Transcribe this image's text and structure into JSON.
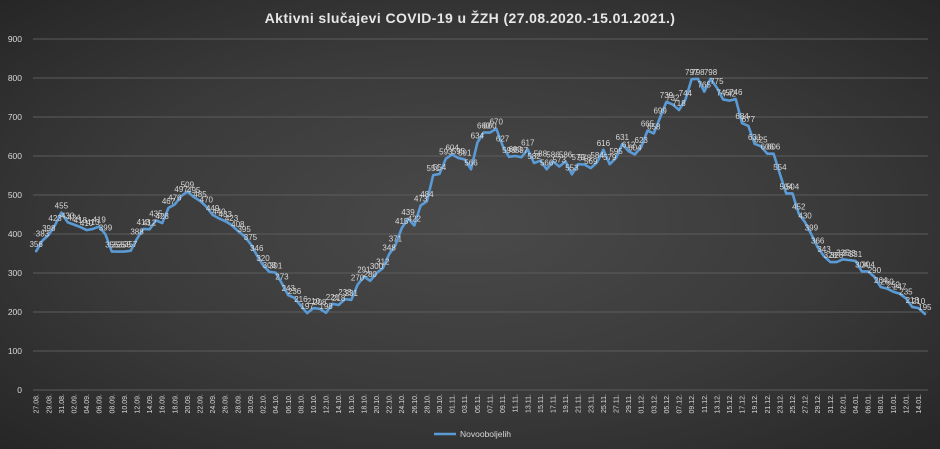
{
  "chart_data": {
    "type": "line",
    "title": "Aktivni slučajevi  COVID-19  u ŽZH (27.08.2020.-15.01.2021.)",
    "xlabel": "",
    "ylabel": "",
    "ylim": [
      0,
      900
    ],
    "yticks": [
      0,
      100,
      200,
      300,
      400,
      500,
      600,
      700,
      800,
      900
    ],
    "grid": true,
    "legend_position": "bottom",
    "line_color": "#5b9bd5",
    "x_tick_labels": [
      "27.08.",
      "29.08.",
      "31.08.",
      "02.09.",
      "04.09.",
      "06.09.",
      "08.09.",
      "10.09.",
      "12.09.",
      "14.09.",
      "16.09.",
      "18.09.",
      "20.09.",
      "22.09.",
      "24.09.",
      "26.09.",
      "28.09.",
      "30.09.",
      "02.10.",
      "04.10.",
      "06.10.",
      "08.10.",
      "10.10.",
      "12.10.",
      "14.10.",
      "16.10.",
      "18.10.",
      "20.10.",
      "22.10.",
      "24.10.",
      "26.10.",
      "28.10.",
      "30.10.",
      "01.11.",
      "03.11.",
      "05.11.",
      "07.11.",
      "09.11.",
      "11.11.",
      "13.11.",
      "15.11.",
      "17.11.",
      "19.11.",
      "21.11.",
      "23.11.",
      "25.11.",
      "27.11.",
      "29.11.",
      "01.12.",
      "03.12.",
      "05.12.",
      "07.12.",
      "09.12.",
      "11.12.",
      "13.12.",
      "15.12.",
      "17.12.",
      "19.12.",
      "21.12.",
      "23.12.",
      "25.12.",
      "27.12.",
      "29.12.",
      "31.12.",
      "02.01.",
      "04.01.",
      "06.01.",
      "08.01.",
      "10.01.",
      "12.01.",
      "14.01."
    ],
    "series": [
      {
        "name": "Novooboljelih",
        "x": [
          "27.08.",
          "28.08.",
          "29.08.",
          "30.08.",
          "31.08.",
          "01.09.",
          "02.09.",
          "03.09.",
          "04.09.",
          "05.09.",
          "06.09.",
          "07.09.",
          "08.09.",
          "09.09.",
          "10.09.",
          "11.09.",
          "12.09.",
          "13.09.",
          "14.09.",
          "15.09.",
          "16.09.",
          "17.09.",
          "18.09.",
          "19.09.",
          "20.09.",
          "21.09.",
          "22.09.",
          "23.09.",
          "24.09.",
          "25.09.",
          "26.09.",
          "27.09.",
          "28.09.",
          "29.09.",
          "30.09.",
          "01.10.",
          "02.10.",
          "03.10.",
          "04.10.",
          "05.10.",
          "06.10.",
          "07.10.",
          "08.10.",
          "09.10.",
          "10.10.",
          "11.10.",
          "12.10.",
          "13.10.",
          "14.10.",
          "15.10.",
          "16.10.",
          "17.10.",
          "18.10.",
          "19.10.",
          "20.10.",
          "21.10.",
          "22.10.",
          "23.10.",
          "24.10.",
          "25.10.",
          "26.10.",
          "27.10.",
          "28.10.",
          "29.10.",
          "30.10.",
          "31.10.",
          "01.11.",
          "02.11.",
          "03.11.",
          "04.11.",
          "05.11.",
          "06.11.",
          "07.11.",
          "08.11.",
          "09.11.",
          "10.11.",
          "11.11.",
          "12.11.",
          "13.11.",
          "14.11.",
          "15.11.",
          "16.11.",
          "17.11.",
          "18.11.",
          "19.11.",
          "20.11.",
          "21.11.",
          "22.11.",
          "23.11.",
          "24.11.",
          "25.11.",
          "26.11.",
          "27.11.",
          "28.11.",
          "29.11.",
          "30.11.",
          "01.12.",
          "02.12.",
          "03.12.",
          "04.12.",
          "05.12.",
          "06.12.",
          "07.12.",
          "08.12.",
          "09.12.",
          "10.12.",
          "11.12.",
          "12.12.",
          "13.12.",
          "14.12.",
          "15.12.",
          "16.12.",
          "17.12.",
          "18.12.",
          "19.12.",
          "20.12.",
          "21.12.",
          "22.12.",
          "23.12.",
          "24.12.",
          "25.12.",
          "26.12.",
          "27.12.",
          "28.12.",
          "29.12.",
          "30.12.",
          "31.12.",
          "01.01.",
          "02.01.",
          "03.01.",
          "04.01.",
          "05.01.",
          "06.01.",
          "07.01.",
          "08.01.",
          "09.01.",
          "10.01.",
          "11.01.",
          "12.01.",
          "13.01.",
          "14.01.",
          "15.01."
        ],
        "values": [
          356,
          383,
          398,
          423,
          455,
          430,
          424,
          418,
          410,
          413,
          419,
          399,
          355,
          355,
          355,
          357,
          388,
          413,
          412,
          435,
          428,
          467,
          476,
          497,
          509,
          495,
          485,
          470,
          449,
          440,
          433,
          423,
          408,
          395,
          375,
          346,
          320,
          303,
          301,
          273,
          243,
          236,
          216,
          197,
          210,
          208,
          198,
          221,
          218,
          233,
          231,
          270,
          291,
          280,
          300,
          312,
          348,
          371,
          415,
          439,
          422,
          473,
          484,
          551,
          554,
          593,
          604,
          595,
          591,
          566,
          634,
          660,
          660,
          670,
          627,
          598,
          600,
          597,
          617,
          582,
          588,
          566,
          586,
          573,
          586,
          553,
          579,
          578,
          569,
          584,
          616,
          579,
          595,
          631,
          612,
          604,
          623,
          665,
          658,
          699,
          739,
          732,
          718,
          744,
          797,
          798,
          765,
          798,
          775,
          745,
          742,
          746,
          684,
          677,
          631,
          625,
          606,
          606,
          554,
          504,
          504,
          452,
          430,
          399,
          366,
          343,
          328,
          328,
          335,
          333,
          331,
          304,
          304,
          290,
          264,
          260,
          252,
          247,
          235,
          213,
          210,
          195
        ]
      }
    ]
  }
}
